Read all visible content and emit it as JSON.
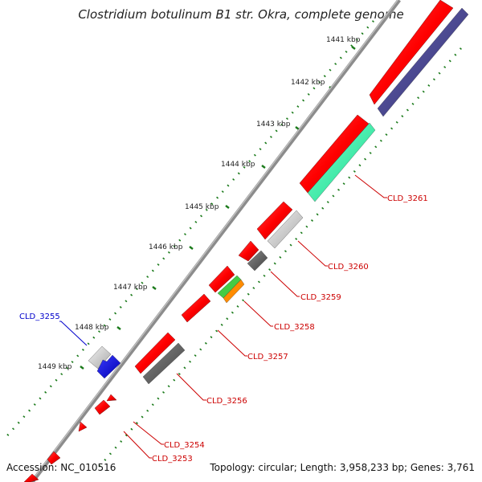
{
  "title": "Clostridium botulinum B1 str. Okra, complete genome",
  "footer": {
    "accession": "Accession: NC_010516",
    "summary": "Topology: circular; Length: 3,958,233 bp; Genes: 3,761"
  },
  "ticks": [
    "1441 kbp",
    "1442 kbp",
    "1443 kbp",
    "1444 kbp",
    "1445 kbp",
    "1446 kbp",
    "1447 kbp",
    "1448 kbp",
    "1449 kbp"
  ],
  "gene_labels": [
    {
      "text": "CLD_3261",
      "color": "#cc0000"
    },
    {
      "text": "CLD_3260",
      "color": "#cc0000"
    },
    {
      "text": "CLD_3259",
      "color": "#cc0000"
    },
    {
      "text": "CLD_3258",
      "color": "#cc0000"
    },
    {
      "text": "CLD_3257",
      "color": "#cc0000"
    },
    {
      "text": "CLD_3256",
      "color": "#cc0000"
    },
    {
      "text": "CLD_3255",
      "color": "#0000cc"
    },
    {
      "text": "CLD_3254",
      "color": "#cc0000"
    },
    {
      "text": "CLD_3253",
      "color": "#cc0000"
    }
  ],
  "colors": {
    "backbone": "#8c8c8c",
    "cds": "#ff0000",
    "rna": "#45428f",
    "green_feature": "#33ffaa",
    "grey_dark": "#606060",
    "grey_light": "#cfcfcf",
    "blue_feature": "#0000ee",
    "orange_feature": "#ff8c00",
    "lime_feature": "#44cc44",
    "tick_dots": "#1a7a1a"
  }
}
